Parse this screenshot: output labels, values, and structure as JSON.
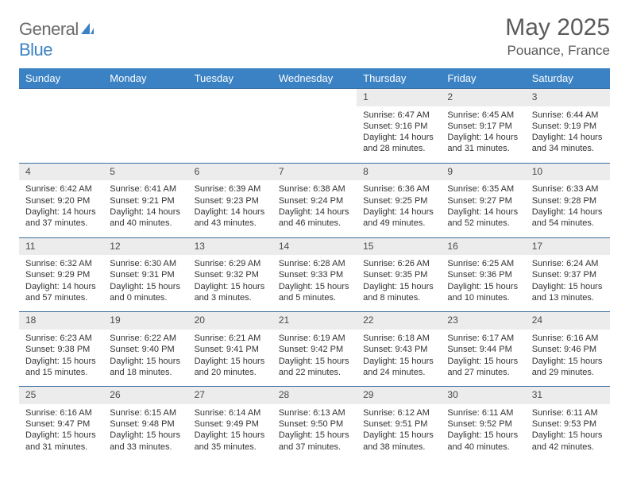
{
  "logo": {
    "text1": "General",
    "text2": "Blue"
  },
  "title": "May 2025",
  "location": "Pouance, France",
  "header_bg": "#3b82c4",
  "daynum_bg": "#ececec",
  "border_color": "#3b6fa0",
  "daynames": [
    "Sunday",
    "Monday",
    "Tuesday",
    "Wednesday",
    "Thursday",
    "Friday",
    "Saturday"
  ],
  "weeks": [
    [
      null,
      null,
      null,
      null,
      {
        "n": "1",
        "sr": "Sunrise: 6:47 AM",
        "ss": "Sunset: 9:16 PM",
        "d1": "Daylight: 14 hours",
        "d2": "and 28 minutes."
      },
      {
        "n": "2",
        "sr": "Sunrise: 6:45 AM",
        "ss": "Sunset: 9:17 PM",
        "d1": "Daylight: 14 hours",
        "d2": "and 31 minutes."
      },
      {
        "n": "3",
        "sr": "Sunrise: 6:44 AM",
        "ss": "Sunset: 9:19 PM",
        "d1": "Daylight: 14 hours",
        "d2": "and 34 minutes."
      }
    ],
    [
      {
        "n": "4",
        "sr": "Sunrise: 6:42 AM",
        "ss": "Sunset: 9:20 PM",
        "d1": "Daylight: 14 hours",
        "d2": "and 37 minutes."
      },
      {
        "n": "5",
        "sr": "Sunrise: 6:41 AM",
        "ss": "Sunset: 9:21 PM",
        "d1": "Daylight: 14 hours",
        "d2": "and 40 minutes."
      },
      {
        "n": "6",
        "sr": "Sunrise: 6:39 AM",
        "ss": "Sunset: 9:23 PM",
        "d1": "Daylight: 14 hours",
        "d2": "and 43 minutes."
      },
      {
        "n": "7",
        "sr": "Sunrise: 6:38 AM",
        "ss": "Sunset: 9:24 PM",
        "d1": "Daylight: 14 hours",
        "d2": "and 46 minutes."
      },
      {
        "n": "8",
        "sr": "Sunrise: 6:36 AM",
        "ss": "Sunset: 9:25 PM",
        "d1": "Daylight: 14 hours",
        "d2": "and 49 minutes."
      },
      {
        "n": "9",
        "sr": "Sunrise: 6:35 AM",
        "ss": "Sunset: 9:27 PM",
        "d1": "Daylight: 14 hours",
        "d2": "and 52 minutes."
      },
      {
        "n": "10",
        "sr": "Sunrise: 6:33 AM",
        "ss": "Sunset: 9:28 PM",
        "d1": "Daylight: 14 hours",
        "d2": "and 54 minutes."
      }
    ],
    [
      {
        "n": "11",
        "sr": "Sunrise: 6:32 AM",
        "ss": "Sunset: 9:29 PM",
        "d1": "Daylight: 14 hours",
        "d2": "and 57 minutes."
      },
      {
        "n": "12",
        "sr": "Sunrise: 6:30 AM",
        "ss": "Sunset: 9:31 PM",
        "d1": "Daylight: 15 hours",
        "d2": "and 0 minutes."
      },
      {
        "n": "13",
        "sr": "Sunrise: 6:29 AM",
        "ss": "Sunset: 9:32 PM",
        "d1": "Daylight: 15 hours",
        "d2": "and 3 minutes."
      },
      {
        "n": "14",
        "sr": "Sunrise: 6:28 AM",
        "ss": "Sunset: 9:33 PM",
        "d1": "Daylight: 15 hours",
        "d2": "and 5 minutes."
      },
      {
        "n": "15",
        "sr": "Sunrise: 6:26 AM",
        "ss": "Sunset: 9:35 PM",
        "d1": "Daylight: 15 hours",
        "d2": "and 8 minutes."
      },
      {
        "n": "16",
        "sr": "Sunrise: 6:25 AM",
        "ss": "Sunset: 9:36 PM",
        "d1": "Daylight: 15 hours",
        "d2": "and 10 minutes."
      },
      {
        "n": "17",
        "sr": "Sunrise: 6:24 AM",
        "ss": "Sunset: 9:37 PM",
        "d1": "Daylight: 15 hours",
        "d2": "and 13 minutes."
      }
    ],
    [
      {
        "n": "18",
        "sr": "Sunrise: 6:23 AM",
        "ss": "Sunset: 9:38 PM",
        "d1": "Daylight: 15 hours",
        "d2": "and 15 minutes."
      },
      {
        "n": "19",
        "sr": "Sunrise: 6:22 AM",
        "ss": "Sunset: 9:40 PM",
        "d1": "Daylight: 15 hours",
        "d2": "and 18 minutes."
      },
      {
        "n": "20",
        "sr": "Sunrise: 6:21 AM",
        "ss": "Sunset: 9:41 PM",
        "d1": "Daylight: 15 hours",
        "d2": "and 20 minutes."
      },
      {
        "n": "21",
        "sr": "Sunrise: 6:19 AM",
        "ss": "Sunset: 9:42 PM",
        "d1": "Daylight: 15 hours",
        "d2": "and 22 minutes."
      },
      {
        "n": "22",
        "sr": "Sunrise: 6:18 AM",
        "ss": "Sunset: 9:43 PM",
        "d1": "Daylight: 15 hours",
        "d2": "and 24 minutes."
      },
      {
        "n": "23",
        "sr": "Sunrise: 6:17 AM",
        "ss": "Sunset: 9:44 PM",
        "d1": "Daylight: 15 hours",
        "d2": "and 27 minutes."
      },
      {
        "n": "24",
        "sr": "Sunrise: 6:16 AM",
        "ss": "Sunset: 9:46 PM",
        "d1": "Daylight: 15 hours",
        "d2": "and 29 minutes."
      }
    ],
    [
      {
        "n": "25",
        "sr": "Sunrise: 6:16 AM",
        "ss": "Sunset: 9:47 PM",
        "d1": "Daylight: 15 hours",
        "d2": "and 31 minutes."
      },
      {
        "n": "26",
        "sr": "Sunrise: 6:15 AM",
        "ss": "Sunset: 9:48 PM",
        "d1": "Daylight: 15 hours",
        "d2": "and 33 minutes."
      },
      {
        "n": "27",
        "sr": "Sunrise: 6:14 AM",
        "ss": "Sunset: 9:49 PM",
        "d1": "Daylight: 15 hours",
        "d2": "and 35 minutes."
      },
      {
        "n": "28",
        "sr": "Sunrise: 6:13 AM",
        "ss": "Sunset: 9:50 PM",
        "d1": "Daylight: 15 hours",
        "d2": "and 37 minutes."
      },
      {
        "n": "29",
        "sr": "Sunrise: 6:12 AM",
        "ss": "Sunset: 9:51 PM",
        "d1": "Daylight: 15 hours",
        "d2": "and 38 minutes."
      },
      {
        "n": "30",
        "sr": "Sunrise: 6:11 AM",
        "ss": "Sunset: 9:52 PM",
        "d1": "Daylight: 15 hours",
        "d2": "and 40 minutes."
      },
      {
        "n": "31",
        "sr": "Sunrise: 6:11 AM",
        "ss": "Sunset: 9:53 PM",
        "d1": "Daylight: 15 hours",
        "d2": "and 42 minutes."
      }
    ]
  ]
}
